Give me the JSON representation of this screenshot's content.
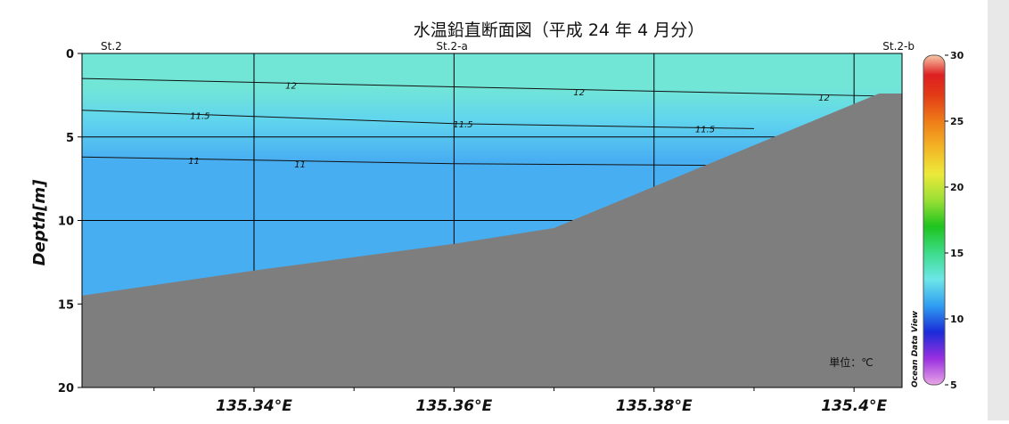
{
  "chart_data": {
    "type": "contour-section",
    "title": "水温鉛直断面図（平成 24 年 4 月分）",
    "ylabel": "Depth[m]",
    "xlabel": "",
    "x_axis": {
      "unit": "°E",
      "range": [
        135.3228,
        135.4048
      ],
      "ticks": [
        135.34,
        135.36,
        135.38,
        135.4
      ],
      "tick_labels": [
        "135.34°E",
        "135.36°E",
        "135.38°E",
        "135.4°E"
      ],
      "minor_ticks": [
        135.33,
        135.35,
        135.37,
        135.39
      ]
    },
    "y_axis": {
      "range": [
        0,
        20
      ],
      "inverted": true,
      "ticks": [
        0,
        5,
        10,
        15,
        20
      ],
      "tick_labels": [
        "0",
        "5",
        "10",
        "15",
        "20"
      ]
    },
    "grid": true,
    "stations": [
      {
        "name": "St.2",
        "lon": 135.3228
      },
      {
        "name": "St.2-a",
        "lon": 135.3598
      },
      {
        "name": "St.2-b",
        "lon": 135.4048
      }
    ],
    "bottom_profile": [
      {
        "lon": 135.3228,
        "depth": 14.5
      },
      {
        "lon": 135.34,
        "depth": 13.0
      },
      {
        "lon": 135.36,
        "depth": 11.4
      },
      {
        "lon": 135.37,
        "depth": 10.45
      },
      {
        "lon": 135.4025,
        "depth": 2.4
      },
      {
        "lon": 135.4048,
        "depth": 2.4
      }
    ],
    "isotherms": [
      {
        "value": 12,
        "label": "12",
        "points": [
          [
            135.3228,
            1.5
          ],
          [
            135.36,
            2.0
          ],
          [
            135.4025,
            2.55
          ]
        ],
        "label_positions": [
          {
            "lon": 135.3437,
            "depth": 1.9
          },
          {
            "lon": 135.3725,
            "depth": 2.3
          },
          {
            "lon": 135.397,
            "depth": 2.6
          }
        ]
      },
      {
        "value": 11.5,
        "label": "11.5",
        "points": [
          [
            135.3228,
            3.4
          ],
          [
            135.36,
            4.2
          ],
          [
            135.39,
            4.5
          ]
        ],
        "label_positions": [
          {
            "lon": 135.3346,
            "depth": 3.7
          },
          {
            "lon": 135.3609,
            "depth": 4.2
          },
          {
            "lon": 135.3851,
            "depth": 4.5
          }
        ]
      },
      {
        "value": 11,
        "label": "11",
        "points": [
          [
            135.3228,
            6.2
          ],
          [
            135.36,
            6.6
          ],
          [
            135.386,
            6.7
          ]
        ],
        "label_positions": [
          {
            "lon": 135.334,
            "depth": 6.4
          },
          {
            "lon": 135.3446,
            "depth": 6.6
          }
        ]
      }
    ],
    "colorbar": {
      "min": 5,
      "max": 30,
      "ticks": [
        5,
        10,
        15,
        20,
        25,
        30
      ],
      "tick_labels": [
        "5",
        "10",
        "15",
        "20",
        "25",
        "30"
      ],
      "stops": [
        {
          "value": 5,
          "color": "#e9a6e6"
        },
        {
          "value": 7,
          "color": "#9a2fe0"
        },
        {
          "value": 9,
          "color": "#1a2cd8"
        },
        {
          "value": 11,
          "color": "#2f9ef2"
        },
        {
          "value": 13,
          "color": "#6ce6e8"
        },
        {
          "value": 15,
          "color": "#3ddc8a"
        },
        {
          "value": 17,
          "color": "#1ec41e"
        },
        {
          "value": 19,
          "color": "#9adf35"
        },
        {
          "value": 21,
          "color": "#ece93a"
        },
        {
          "value": 23,
          "color": "#f3b525"
        },
        {
          "value": 25,
          "color": "#ef7c18"
        },
        {
          "value": 27,
          "color": "#e23a16"
        },
        {
          "value": 28.5,
          "color": "#de1f22"
        },
        {
          "value": 30,
          "color": "#f8c7a6"
        }
      ]
    },
    "field_colors": {
      "warm": "#72e6d6",
      "mid": "#60d5ee",
      "cool": "#48aef2",
      "bottom": "#7e7e7e"
    },
    "unit_label": "単位：℃",
    "watermark": "Ocean Data View"
  }
}
